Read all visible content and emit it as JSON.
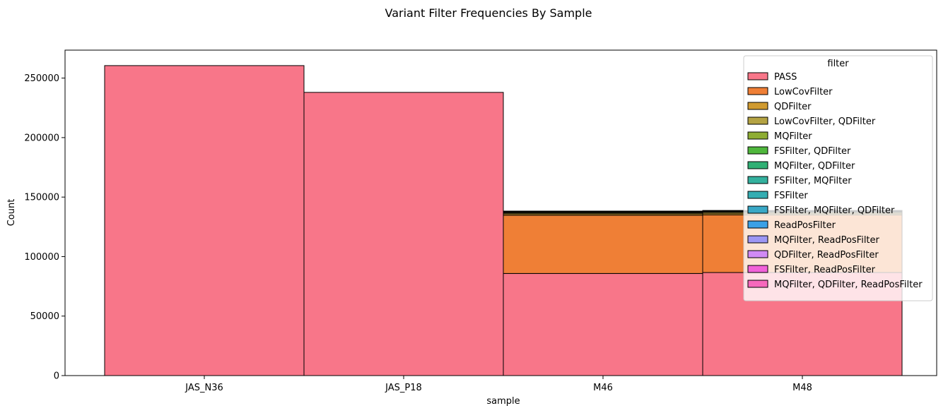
{
  "chart_data": {
    "type": "bar",
    "stacked": true,
    "title": "Variant Filter Frequencies By Sample",
    "xlabel": "sample",
    "ylabel": "Count",
    "ylim": [
      0,
      273500
    ],
    "yticks": [
      0,
      50000,
      100000,
      150000,
      200000,
      250000
    ],
    "ytick_labels": [
      "0",
      "50000",
      "100000",
      "150000",
      "200000",
      "250000"
    ],
    "grid": false,
    "categories": [
      "JAS_N36",
      "JAS_P18",
      "M46",
      "M48"
    ],
    "legend": {
      "title": "filter",
      "placement": "top-right"
    },
    "series": [
      {
        "name": "PASS",
        "color": "#f87689",
        "values": [
          260500,
          238000,
          85800,
          86600
        ]
      },
      {
        "name": "LowCovFilter",
        "color": "#ef7f36",
        "values": [
          0,
          0,
          49000,
          48500
        ]
      },
      {
        "name": "QDFilter",
        "color": "#d09a30",
        "values": [
          0,
          0,
          1200,
          1300
        ]
      },
      {
        "name": "LowCovFilter, QDFilter",
        "color": "#b4a343",
        "values": [
          0,
          0,
          900,
          950
        ]
      },
      {
        "name": "MQFilter",
        "color": "#8ead33",
        "values": [
          0,
          0,
          500,
          500
        ]
      },
      {
        "name": "FSFilter, QDFilter",
        "color": "#4fb73c",
        "values": [
          0,
          0,
          200,
          200
        ]
      },
      {
        "name": "MQFilter, QDFilter",
        "color": "#30b074",
        "values": [
          0,
          0,
          150,
          150
        ]
      },
      {
        "name": "FSFilter, MQFilter",
        "color": "#33b19e",
        "values": [
          0,
          0,
          100,
          100
        ]
      },
      {
        "name": "FSFilter",
        "color": "#35adb2",
        "values": [
          0,
          0,
          100,
          100
        ]
      },
      {
        "name": "FSFilter, MQFilter, QDFilter",
        "color": "#39a8c6",
        "values": [
          0,
          0,
          80,
          80
        ]
      },
      {
        "name": "ReadPosFilter",
        "color": "#3aa0e6",
        "values": [
          0,
          0,
          60,
          60
        ]
      },
      {
        "name": "MQFilter, ReadPosFilter",
        "color": "#9c96f4",
        "values": [
          0,
          0,
          40,
          40
        ]
      },
      {
        "name": "QDFilter, ReadPosFilter",
        "color": "#d18af4",
        "values": [
          0,
          0,
          30,
          30
        ]
      },
      {
        "name": "FSFilter, ReadPosFilter",
        "color": "#f162d9",
        "values": [
          0,
          0,
          20,
          20
        ]
      },
      {
        "name": "MQFilter, QDFilter, ReadPosFilter",
        "color": "#f669bc",
        "values": [
          0,
          0,
          20,
          20
        ]
      }
    ]
  }
}
